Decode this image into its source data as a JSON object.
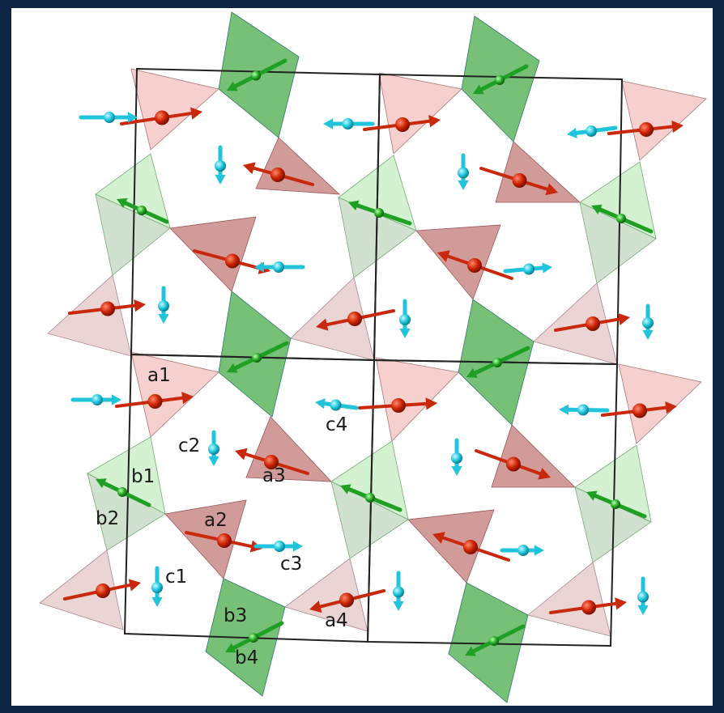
{
  "figure": {
    "type": "magnetic-structure",
    "labels": {
      "a1": "a1",
      "a2": "a2",
      "a3": "a3",
      "a4": "a4",
      "b1": "b1",
      "b2": "b2",
      "b3": "b3",
      "b4": "b4",
      "c1": "c1",
      "c2": "c2",
      "c3": "c3",
      "c4": "c4"
    },
    "colors": {
      "background_frame": "#0f2544",
      "panel": "#ffffff",
      "cell_outline": "#222222",
      "red_light": "#f4c8c6",
      "red_dark": "#c98a88",
      "green_light": "#cdeec9",
      "green_dark": "#5fb55f",
      "red_atom": "#cc2200",
      "cyan_atom": "#1cc6dd",
      "green_atom": "#22aa22"
    }
  }
}
